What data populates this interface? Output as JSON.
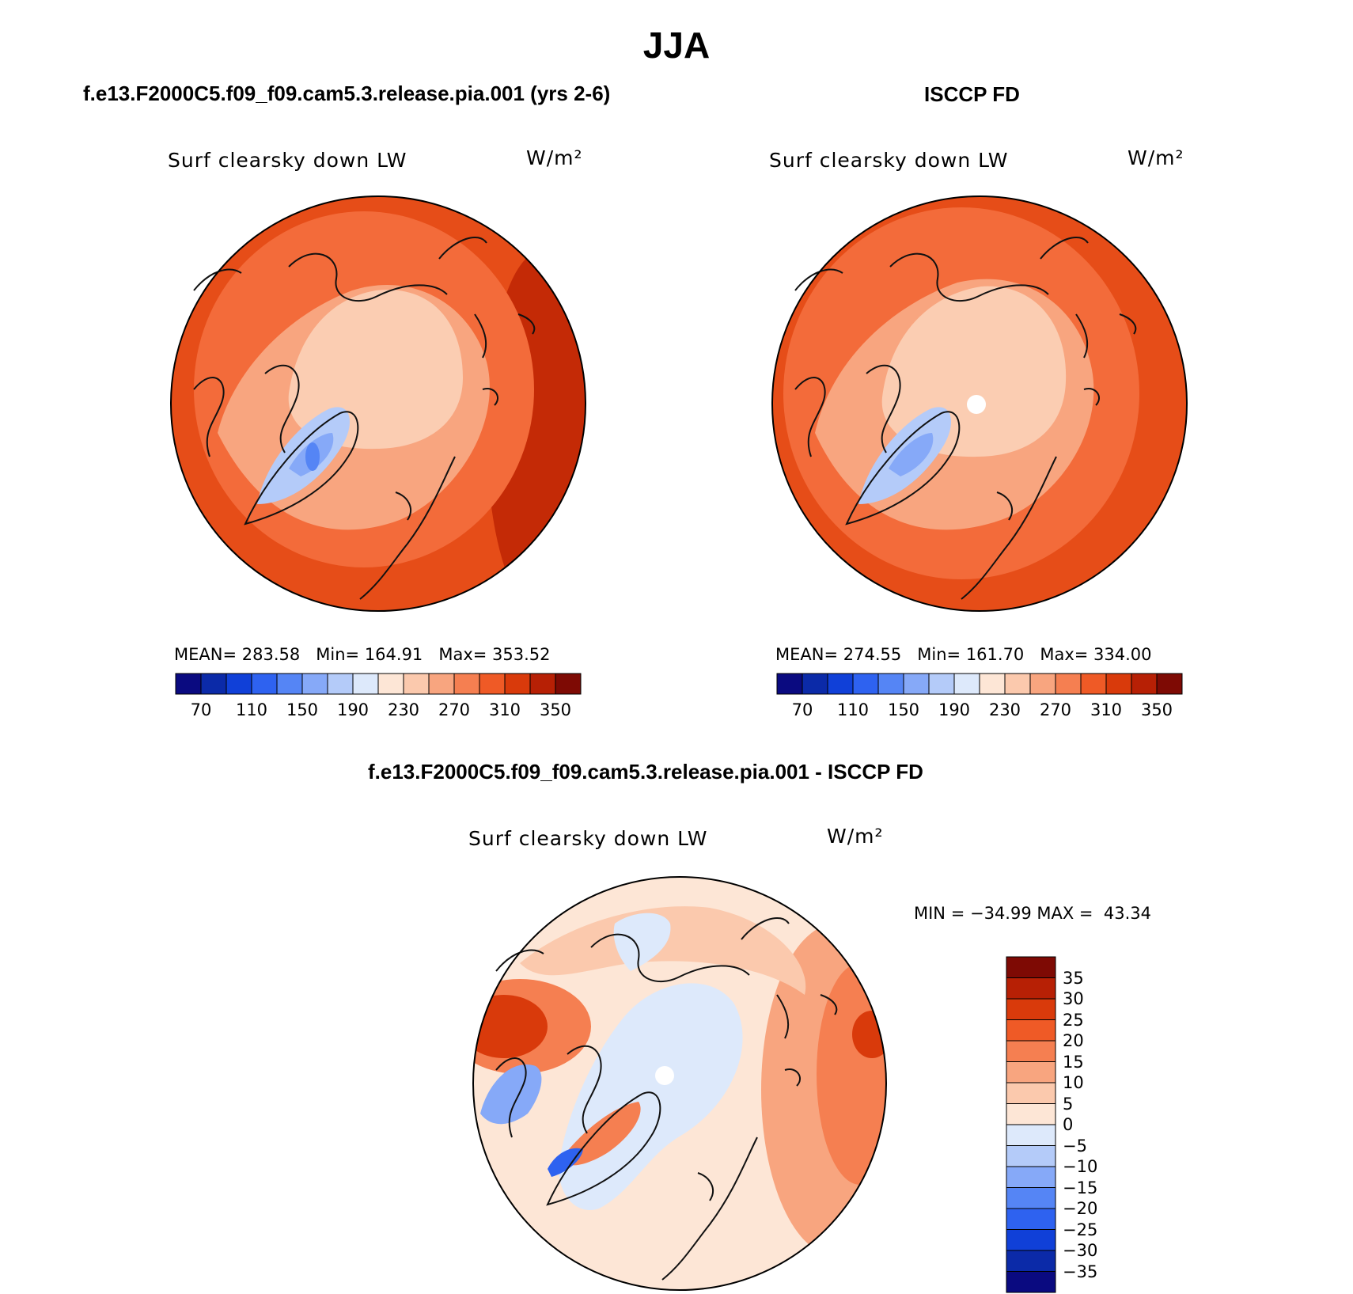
{
  "page": {
    "title": "JJA"
  },
  "panels": {
    "model": {
      "subtitle": "f.e13.F2000C5.f09_f09.cam5.3.release.pia.001 (yrs 2-6)",
      "variable": "Surf clearsky down LW",
      "units": "W/m²",
      "stats": {
        "mean_label": "MEAN=",
        "mean": "283.58",
        "min_label": "Min=",
        "min": "164.91",
        "max_label": "Max=",
        "max": "353.52"
      }
    },
    "obs": {
      "subtitle": "ISCCP FD",
      "variable": "Surf clearsky down LW",
      "units": "W/m²",
      "stats": {
        "mean_label": "MEAN=",
        "mean": "274.55",
        "min_label": "Min=",
        "min": "161.70",
        "max_label": "Max=",
        "max": "334.00"
      }
    },
    "diff": {
      "subtitle": "f.e13.F2000C5.f09_f09.cam5.3.release.pia.001 - ISCCP FD",
      "variable": "Surf clearsky down LW",
      "units": "W/m²",
      "stats": {
        "min_label": "MIN =",
        "min": "−34.99",
        "max_label": "MAX =",
        "max": "43.34"
      }
    }
  },
  "colorbars": {
    "abs": {
      "colors": [
        "#0a0a80",
        "#0b2aa8",
        "#1040d8",
        "#2e62f0",
        "#5585f5",
        "#86a9f8",
        "#b4cbf9",
        "#dde9fb",
        "#fde6d6",
        "#fbc9ad",
        "#f8a57f",
        "#f57f51",
        "#ef5a26",
        "#d93a0b",
        "#b72005",
        "#7e0a04"
      ],
      "tick_labels": [
        "70",
        "110",
        "150",
        "190",
        "230",
        "270",
        "310",
        "350"
      ]
    },
    "diff": {
      "colors": [
        "#0a0a80",
        "#0b2aa8",
        "#1040d8",
        "#2e62f0",
        "#5585f5",
        "#86a9f8",
        "#b4cbf9",
        "#dde9fb",
        "#fde6d6",
        "#fbc9ad",
        "#f8a57f",
        "#f57f51",
        "#ef5a26",
        "#d93a0b",
        "#b72005",
        "#7e0a04"
      ],
      "tick_labels": [
        "35",
        "30",
        "25",
        "20",
        "15",
        "10",
        "5",
        "0",
        "−5",
        "−10",
        "−15",
        "−20",
        "−25",
        "−30",
        "−35"
      ]
    }
  },
  "map_colors": {
    "ocean_far": "#e64d18",
    "ocean_mid": "#f36b3a",
    "land_warm": "#f8a57f",
    "arctic": "#fbcdb2",
    "greenland_edge": "#b4cbf9",
    "greenland_core": "#86a9f8",
    "greenland_peak": "#5585f5",
    "hot_edge": "#c42a06",
    "diff_base": "#fde6d6",
    "diff_pos1": "#fbc9ad",
    "diff_pos2": "#f8a57f",
    "diff_pos3": "#f57f51",
    "diff_pos4": "#d93a0b",
    "diff_neg1": "#dde9fb",
    "diff_neg2": "#86a9f8",
    "diff_neg3": "#2e62f0",
    "coast": "#111111"
  }
}
